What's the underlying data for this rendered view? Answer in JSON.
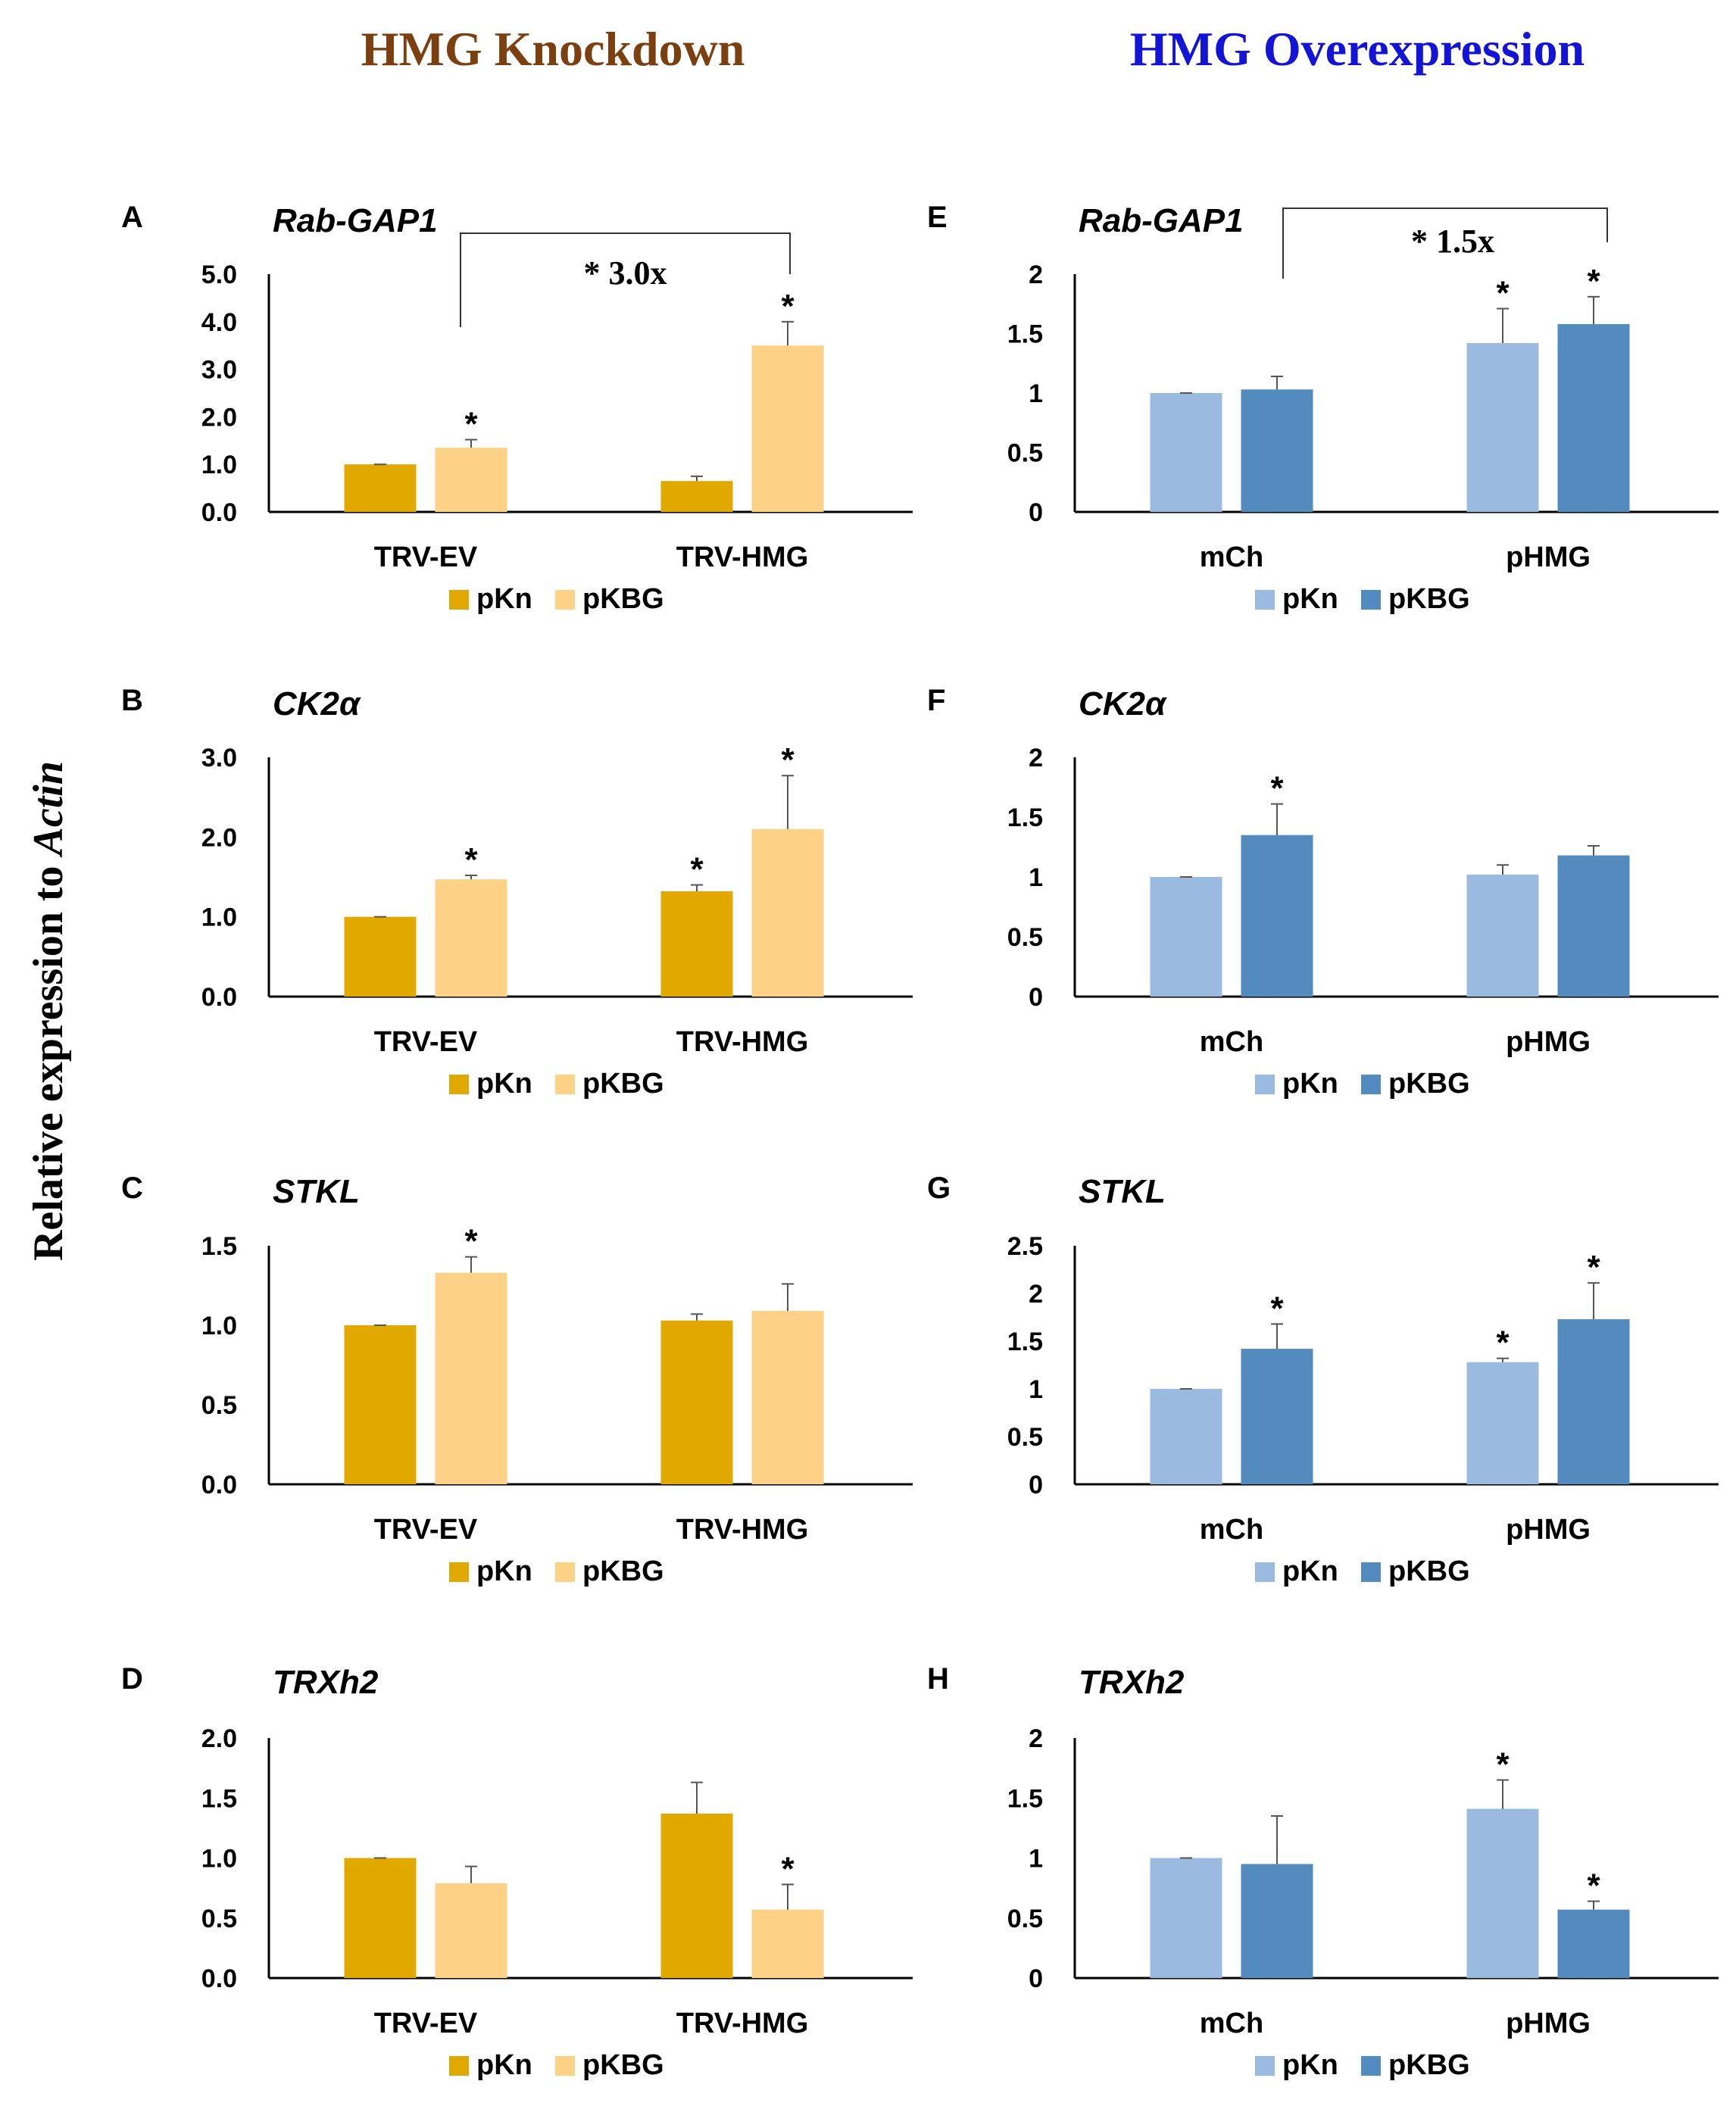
{
  "headers": {
    "knockdown": "HMG Knockdown",
    "overexpression": "HMG Overexpression"
  },
  "y_axis_label": {
    "prefix": "Relative expression to ",
    "gene": "Actin"
  },
  "colors": {
    "knockdown_header": "#7b3f10",
    "overexpression_header": "#1414d8",
    "kd_pKn": "#e1a800",
    "kd_pKBG": "#fdd287",
    "oe_pKn": "#9bbadf",
    "oe_pKBG": "#548bbf",
    "axis": "#000000",
    "errorbar": "#555555"
  },
  "chart_data": [
    {
      "panel": "A",
      "title": "Rab-GAP1",
      "type": "bar",
      "group": "knockdown",
      "categories": [
        "TRV-EV",
        "TRV-HMG"
      ],
      "series": [
        {
          "name": "pKn",
          "values": [
            1.0,
            0.65
          ],
          "errors": [
            0.0,
            0.1
          ],
          "sig": [
            false,
            false
          ]
        },
        {
          "name": "pKBG",
          "values": [
            1.35,
            3.5
          ],
          "errors": [
            0.17,
            0.5
          ],
          "sig": [
            true,
            true
          ]
        }
      ],
      "yticks": [
        "0.0",
        "1.0",
        "2.0",
        "3.0",
        "4.0",
        "5.0"
      ],
      "ylim": [
        0,
        5
      ],
      "fold": "* 3.0x"
    },
    {
      "panel": "B",
      "title": "CK2α",
      "type": "bar",
      "group": "knockdown",
      "categories": [
        "TRV-EV",
        "TRV-HMG"
      ],
      "series": [
        {
          "name": "pKn",
          "values": [
            1.0,
            1.32
          ],
          "errors": [
            0.0,
            0.08
          ],
          "sig": [
            false,
            true
          ]
        },
        {
          "name": "pKBG",
          "values": [
            1.47,
            2.1
          ],
          "errors": [
            0.05,
            0.67
          ],
          "sig": [
            true,
            true
          ]
        }
      ],
      "yticks": [
        "0.0",
        "1.0",
        "2.0",
        "3.0"
      ],
      "ylim": [
        0,
        3
      ]
    },
    {
      "panel": "C",
      "title": "STKL",
      "type": "bar",
      "group": "knockdown",
      "categories": [
        "TRV-EV",
        "TRV-HMG"
      ],
      "series": [
        {
          "name": "pKn",
          "values": [
            1.0,
            1.03
          ],
          "errors": [
            0.0,
            0.04
          ],
          "sig": [
            false,
            false
          ]
        },
        {
          "name": "pKBG",
          "values": [
            1.33,
            1.09
          ],
          "errors": [
            0.1,
            0.17
          ],
          "sig": [
            true,
            false
          ]
        }
      ],
      "yticks": [
        "0.0",
        "0.5",
        "1.0",
        "1.5"
      ],
      "ylim": [
        0,
        1.5
      ]
    },
    {
      "panel": "D",
      "title": "TRXh2",
      "type": "bar",
      "group": "knockdown",
      "categories": [
        "TRV-EV",
        "TRV-HMG"
      ],
      "series": [
        {
          "name": "pKn",
          "values": [
            1.0,
            1.37
          ],
          "errors": [
            0.0,
            0.26
          ],
          "sig": [
            false,
            false
          ]
        },
        {
          "name": "pKBG",
          "values": [
            0.79,
            0.57
          ],
          "errors": [
            0.14,
            0.21
          ],
          "sig": [
            false,
            true
          ]
        }
      ],
      "yticks": [
        "0.0",
        "0.5",
        "1.0",
        "1.5",
        "2.0"
      ],
      "ylim": [
        0,
        2
      ]
    },
    {
      "panel": "E",
      "title": "Rab-GAP1",
      "type": "bar",
      "group": "overexpression",
      "categories": [
        "mCh",
        "pHMG"
      ],
      "series": [
        {
          "name": "pKn",
          "values": [
            1.0,
            1.42
          ],
          "errors": [
            0.0,
            0.29
          ],
          "sig": [
            false,
            true
          ]
        },
        {
          "name": "pKBG",
          "values": [
            1.03,
            1.58
          ],
          "errors": [
            0.11,
            0.23
          ],
          "sig": [
            false,
            true
          ]
        }
      ],
      "yticks": [
        "0",
        "0.5",
        "1",
        "1.5",
        "2"
      ],
      "ylim": [
        0,
        2
      ],
      "fold": "* 1.5x"
    },
    {
      "panel": "F",
      "title": "CK2α",
      "type": "bar",
      "group": "overexpression",
      "categories": [
        "mCh",
        "pHMG"
      ],
      "series": [
        {
          "name": "pKn",
          "values": [
            1.0,
            1.02
          ],
          "errors": [
            0.0,
            0.08
          ],
          "sig": [
            false,
            false
          ]
        },
        {
          "name": "pKBG",
          "values": [
            1.35,
            1.18
          ],
          "errors": [
            0.26,
            0.08
          ],
          "sig": [
            true,
            false
          ]
        }
      ],
      "yticks": [
        "0",
        "0.5",
        "1",
        "1.5",
        "2"
      ],
      "ylim": [
        0,
        2
      ]
    },
    {
      "panel": "G",
      "title": "STKL",
      "type": "bar",
      "group": "overexpression",
      "categories": [
        "mCh",
        "pHMG"
      ],
      "series": [
        {
          "name": "pKn",
          "values": [
            1.0,
            1.28
          ],
          "errors": [
            0.0,
            0.04
          ],
          "sig": [
            false,
            true
          ]
        },
        {
          "name": "pKBG",
          "values": [
            1.42,
            1.73
          ],
          "errors": [
            0.26,
            0.38
          ],
          "sig": [
            true,
            true
          ]
        }
      ],
      "yticks": [
        "0",
        "0.5",
        "1",
        "1.5",
        "2",
        "2.5"
      ],
      "ylim": [
        0,
        2.5
      ]
    },
    {
      "panel": "H",
      "title": "TRXh2",
      "type": "bar",
      "group": "overexpression",
      "categories": [
        "mCh",
        "pHMG"
      ],
      "series": [
        {
          "name": "pKn",
          "values": [
            1.0,
            1.41
          ],
          "errors": [
            0.0,
            0.24
          ],
          "sig": [
            false,
            true
          ]
        },
        {
          "name": "pKBG",
          "values": [
            0.95,
            0.57
          ],
          "errors": [
            0.4,
            0.07
          ],
          "sig": [
            false,
            true
          ]
        }
      ],
      "yticks": [
        "0",
        "0.5",
        "1",
        "1.5",
        "2"
      ],
      "ylim": [
        0,
        2
      ]
    }
  ]
}
